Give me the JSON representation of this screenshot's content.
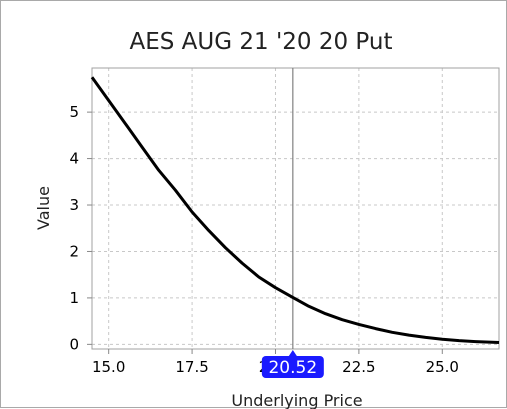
{
  "chart_data": {
    "type": "line",
    "title": "AES AUG 21 '20 20 Put",
    "xlabel": "Underlying Price",
    "ylabel": "Value",
    "xlim": [
      14.5,
      26.7
    ],
    "ylim": [
      -0.1,
      5.95
    ],
    "grid": true,
    "x_ticks": [
      15.0,
      17.5,
      20.0,
      22.5,
      25.0
    ],
    "x_tick_labels": [
      "15.0",
      "17.5",
      "20.0",
      "22.5",
      "25.0"
    ],
    "y_ticks": [
      0,
      1,
      2,
      3,
      4,
      5
    ],
    "y_tick_labels": [
      "0",
      "1",
      "2",
      "3",
      "4",
      "5"
    ],
    "marker": {
      "x": 20.52,
      "label": "20.52"
    },
    "series": [
      {
        "x": [
          14.5,
          15.0,
          15.5,
          16.0,
          16.5,
          17.0,
          17.5,
          18.0,
          18.5,
          19.0,
          19.5,
          20.0,
          20.52,
          21.0,
          21.5,
          22.0,
          22.5,
          23.0,
          23.5,
          24.0,
          24.5,
          25.0,
          25.5,
          26.0,
          26.7
        ],
        "y": [
          5.75,
          5.25,
          4.75,
          4.25,
          3.75,
          3.32,
          2.85,
          2.45,
          2.08,
          1.75,
          1.45,
          1.22,
          1.01,
          0.82,
          0.66,
          0.53,
          0.43,
          0.34,
          0.26,
          0.2,
          0.15,
          0.11,
          0.08,
          0.06,
          0.04
        ]
      }
    ],
    "colors": {
      "line": "#000000",
      "grid": "#c8c8c8",
      "marker_line": "#808080",
      "marker_badge": "#1a1aff"
    }
  }
}
